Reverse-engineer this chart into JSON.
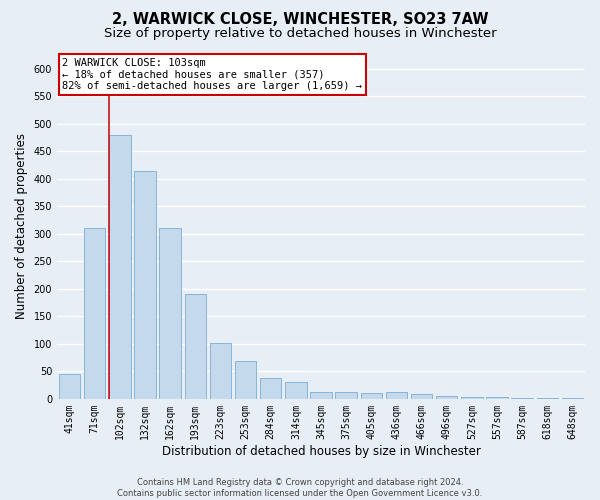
{
  "title": "2, WARWICK CLOSE, WINCHESTER, SO23 7AW",
  "subtitle": "Size of property relative to detached houses in Winchester",
  "xlabel": "Distribution of detached houses by size in Winchester",
  "ylabel": "Number of detached properties",
  "categories": [
    "41sqm",
    "71sqm",
    "102sqm",
    "132sqm",
    "162sqm",
    "193sqm",
    "223sqm",
    "253sqm",
    "284sqm",
    "314sqm",
    "345sqm",
    "375sqm",
    "405sqm",
    "436sqm",
    "466sqm",
    "496sqm",
    "527sqm",
    "557sqm",
    "587sqm",
    "618sqm",
    "648sqm"
  ],
  "values": [
    45,
    310,
    480,
    415,
    310,
    190,
    101,
    69,
    38,
    30,
    13,
    13,
    10,
    13,
    8,
    5,
    3,
    3,
    1,
    1,
    1
  ],
  "bar_color": "#c5d9ed",
  "bar_edge_color": "#7aadd4",
  "highlight_bar_index": 2,
  "highlight_line_color": "#cc0000",
  "annotation_text": "2 WARWICK CLOSE: 103sqm\n← 18% of detached houses are smaller (357)\n82% of semi-detached houses are larger (1,659) →",
  "annotation_box_facecolor": "#ffffff",
  "annotation_box_edgecolor": "#cc0000",
  "ylim": [
    0,
    630
  ],
  "yticks": [
    0,
    50,
    100,
    150,
    200,
    250,
    300,
    350,
    400,
    450,
    500,
    550,
    600
  ],
  "footer_line1": "Contains HM Land Registry data © Crown copyright and database right 2024.",
  "footer_line2": "Contains public sector information licensed under the Open Government Licence v3.0.",
  "bg_color": "#e8eef5",
  "plot_bg_color": "#e8eef5",
  "grid_color": "#ffffff",
  "title_fontsize": 10.5,
  "subtitle_fontsize": 9.5,
  "tick_fontsize": 7,
  "ylabel_fontsize": 8.5,
  "xlabel_fontsize": 8.5,
  "annotation_fontsize": 7.5,
  "footer_fontsize": 6.0
}
